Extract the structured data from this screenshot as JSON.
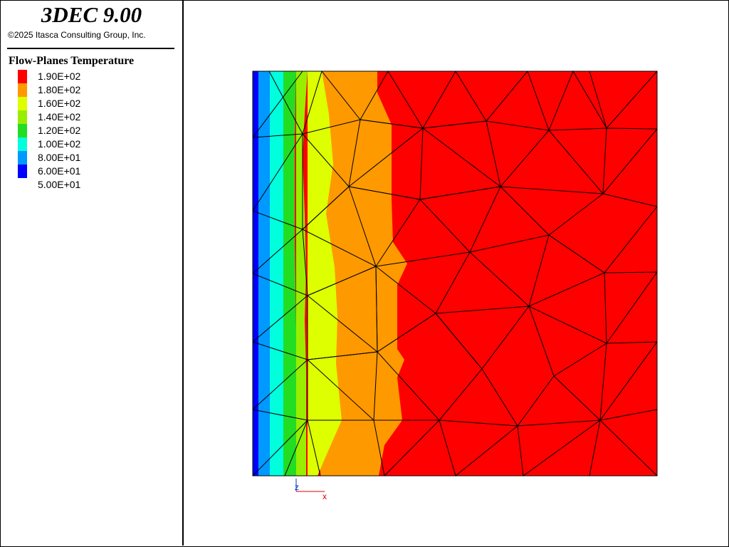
{
  "app": {
    "title": "3DEC 9.00",
    "copyright": "©2025 Itasca Consulting Group, Inc."
  },
  "legend": {
    "title": "Flow-Planes Temperature",
    "entries": [
      {
        "label": "1.90E+02",
        "color": "#ff0000"
      },
      {
        "label": "1.80E+02",
        "color": "#ff9900"
      },
      {
        "label": "1.60E+02",
        "color": "#ddff00"
      },
      {
        "label": "1.40E+02",
        "color": "#99ee00"
      },
      {
        "label": "1.20E+02",
        "color": "#22dd22"
      },
      {
        "label": "1.00E+02",
        "color": "#00ffdd"
      },
      {
        "label": "8.00E+01",
        "color": "#0099ff"
      },
      {
        "label": "6.00E+01",
        "color": "#0000ff"
      },
      {
        "label": "5.00E+01",
        "color": ""
      }
    ]
  },
  "axes": {
    "z_label": "z",
    "x_label": "x",
    "z_color": "#0033cc",
    "x_color": "#dd0000"
  },
  "icons": {
    "axis_triad": "axis-triad-icon"
  }
}
